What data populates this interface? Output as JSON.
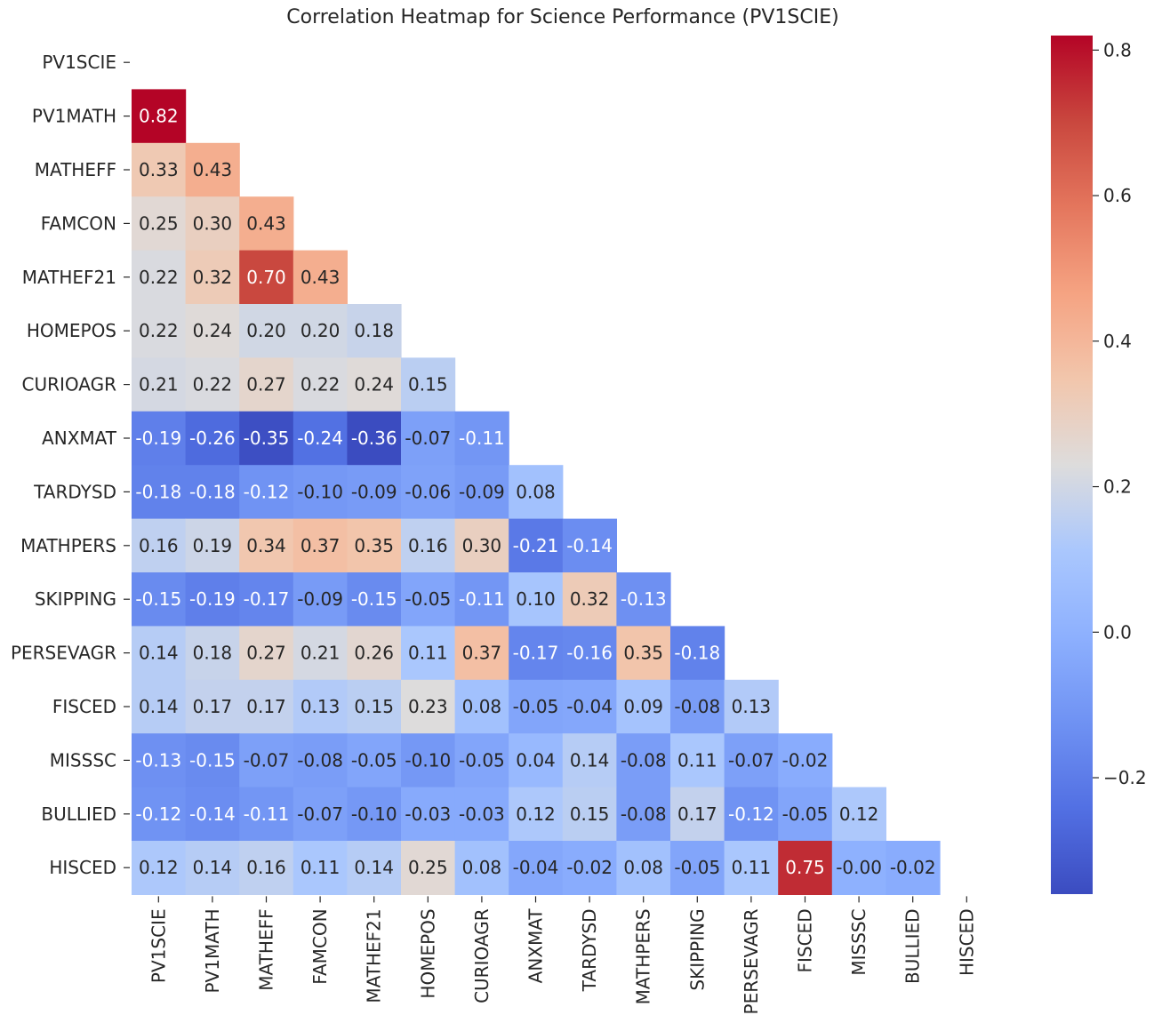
{
  "chart_data": {
    "type": "heatmap",
    "title": "Correlation Heatmap for Science Performance (PV1SCIE)",
    "variables": [
      "PV1SCIE",
      "PV1MATH",
      "MATHEFF",
      "FAMCON",
      "MATHEF21",
      "HOMEPOS",
      "CURIOAGR",
      "ANXMAT",
      "TARDYSD",
      "MATHPERS",
      "SKIPPING",
      "PERSEVAGR",
      "FISCED",
      "MISSSC",
      "BULLIED",
      "HISCED"
    ],
    "mask": "upper-triangle-including-diagonal",
    "lower_triangle": [
      [],
      [
        "0.82"
      ],
      [
        "0.33",
        "0.43"
      ],
      [
        "0.25",
        "0.30",
        "0.43"
      ],
      [
        "0.22",
        "0.32",
        "0.70",
        "0.43"
      ],
      [
        "0.22",
        "0.24",
        "0.20",
        "0.20",
        "0.18"
      ],
      [
        "0.21",
        "0.22",
        "0.27",
        "0.22",
        "0.24",
        "0.15"
      ],
      [
        "-0.19",
        "-0.26",
        "-0.35",
        "-0.24",
        "-0.36",
        "-0.07",
        "-0.11"
      ],
      [
        "-0.18",
        "-0.18",
        "-0.12",
        "-0.10",
        "-0.09",
        "-0.06",
        "-0.09",
        "0.08"
      ],
      [
        "0.16",
        "0.19",
        "0.34",
        "0.37",
        "0.35",
        "0.16",
        "0.30",
        "-0.21",
        "-0.14"
      ],
      [
        "-0.15",
        "-0.19",
        "-0.17",
        "-0.09",
        "-0.15",
        "-0.05",
        "-0.11",
        "0.10",
        "0.32",
        "-0.13"
      ],
      [
        "0.14",
        "0.18",
        "0.27",
        "0.21",
        "0.26",
        "0.11",
        "0.37",
        "-0.17",
        "-0.16",
        "0.35",
        "-0.18"
      ],
      [
        "0.14",
        "0.17",
        "0.17",
        "0.13",
        "0.15",
        "0.23",
        "0.08",
        "-0.05",
        "-0.04",
        "0.09",
        "-0.08",
        "0.13"
      ],
      [
        "-0.13",
        "-0.15",
        "-0.07",
        "-0.08",
        "-0.05",
        "-0.10",
        "-0.05",
        "0.04",
        "0.14",
        "-0.08",
        "0.11",
        "-0.07",
        "-0.02"
      ],
      [
        "-0.12",
        "-0.14",
        "-0.11",
        "-0.07",
        "-0.10",
        "-0.03",
        "-0.03",
        "0.12",
        "0.15",
        "-0.08",
        "0.17",
        "-0.12",
        "-0.05",
        "0.12"
      ],
      [
        "0.12",
        "0.14",
        "0.16",
        "0.11",
        "0.14",
        "0.25",
        "0.08",
        "-0.04",
        "-0.02",
        "0.08",
        "-0.05",
        "0.11",
        "0.75",
        "-0.00",
        "-0.02"
      ]
    ],
    "colormap": "coolwarm",
    "vmin": -0.36,
    "vmax": 0.82,
    "colorbar_ticks": [
      "0.8",
      "0.6",
      "0.4",
      "0.2",
      "0.0",
      "−0.2"
    ],
    "colorbar_tick_values": [
      0.8,
      0.6,
      0.4,
      0.2,
      0.0,
      -0.2
    ]
  }
}
